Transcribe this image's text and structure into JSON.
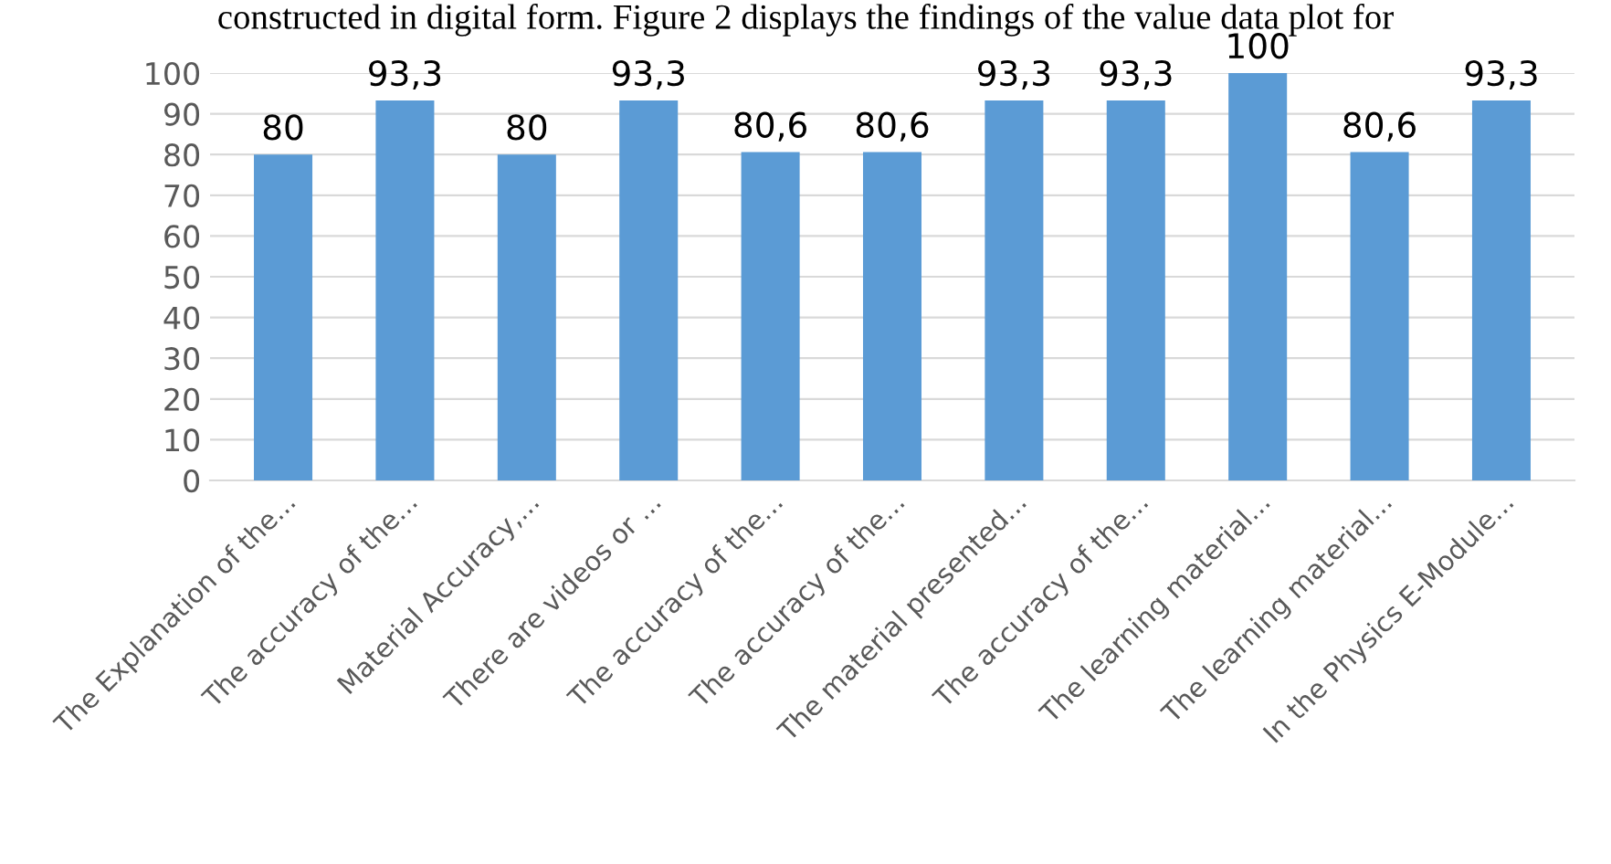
{
  "chart_data": {
    "type": "bar",
    "categories": [
      "The Explanation of the...",
      "The accuracy of the...",
      "Material Accuracy,...",
      "There are videos or ...",
      "The accuracy of the...",
      "The accuracy of the...",
      "The material presented...",
      "The accuracy of the...",
      "The learning material...",
      "The learning material...",
      "In the Physics E-Module..."
    ],
    "values": [
      80,
      93.3,
      80,
      93.3,
      80.6,
      80.6,
      93.3,
      93.3,
      100,
      80.6,
      93.3
    ],
    "value_labels": [
      "80",
      "93,3",
      "80",
      "93,3",
      "80,6",
      "80,6",
      "93,3",
      "93,3",
      "100",
      "80,6",
      "93,3"
    ],
    "color": "#5b9bd5",
    "ylim": [
      0,
      100
    ],
    "yticks": [
      0,
      10,
      20,
      30,
      40,
      50,
      60,
      70,
      80,
      90,
      100
    ],
    "grid": "y",
    "annotations": [
      "constructed in digital form. Figure 2 displays the findings of the value data plot for"
    ]
  }
}
